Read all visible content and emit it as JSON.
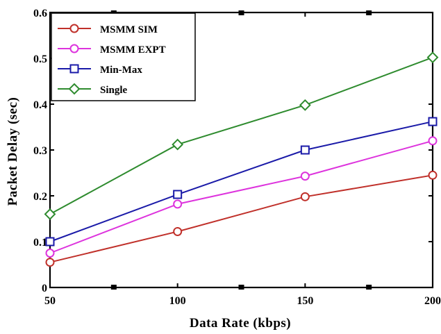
{
  "chart_data": {
    "type": "line",
    "title": "",
    "xlabel": "Data Rate (kbps)",
    "ylabel": "Packet Delay (sec)",
    "xlim": [
      50,
      200
    ],
    "ylim": [
      0,
      0.6
    ],
    "xticks": [
      50,
      100,
      150,
      200
    ],
    "xtick_labels": [
      "50",
      "100",
      "150",
      "200"
    ],
    "yticks": [
      0,
      0.1,
      0.2,
      0.3,
      0.4,
      0.5,
      0.6
    ],
    "ytick_labels": [
      "0",
      "0.1",
      "0.2",
      "0.3",
      "0.4",
      "0.5",
      "0.6"
    ],
    "grid": false,
    "legend_position": "top-left",
    "x": [
      50,
      100,
      150,
      200
    ],
    "series": [
      {
        "name": "MSMM SIM",
        "values": [
          0.055,
          0.122,
          0.198,
          0.245
        ],
        "color": "#c0302a",
        "marker": "circle"
      },
      {
        "name": "MSMM EXPT",
        "values": [
          0.075,
          0.182,
          0.243,
          0.32
        ],
        "color": "#dd33dd",
        "marker": "circle"
      },
      {
        "name": "Min-Max",
        "values": [
          0.1,
          0.203,
          0.3,
          0.362
        ],
        "color": "#1a1aa8",
        "marker": "square"
      },
      {
        "name": "Single",
        "values": [
          0.16,
          0.312,
          0.398,
          0.502
        ],
        "color": "#2e8b2e",
        "marker": "diamond"
      }
    ]
  }
}
